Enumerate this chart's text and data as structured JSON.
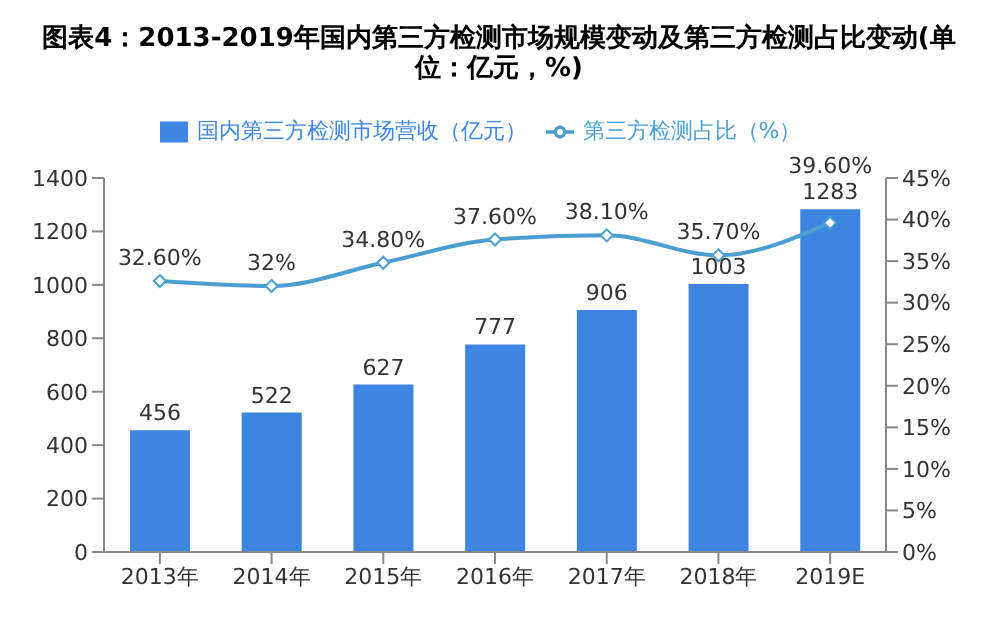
{
  "chart_data": {
    "type": "bar",
    "title": "图表4：2013-2019年国内第三方检测市场规模变动及第三方检测占比变动(单位：亿元，%)",
    "categories": [
      "2013年",
      "2014年",
      "2015年",
      "2016年",
      "2017年",
      "2018年",
      "2019E"
    ],
    "series": [
      {
        "name": "国内第三方检测市场营收（亿元）",
        "color": "#3d85de",
        "values": [
          456,
          522,
          627,
          777,
          906,
          1003,
          1283
        ],
        "value_labels": [
          "456",
          "522",
          "627",
          "777",
          "906",
          "1003",
          "1283"
        ]
      },
      {
        "name": "第三方检测占比（%）",
        "type": "line",
        "axis": "y2",
        "color": "#4a9fd0",
        "marker": "diamond",
        "values": [
          32.6,
          32,
          34.8,
          37.6,
          38.1,
          35.7,
          39.6
        ],
        "value_labels": [
          "32.60%",
          "32%",
          "34.80%",
          "37.60%",
          "38.10%",
          "35.70%",
          "39.60%"
        ]
      }
    ],
    "ylim": [
      0,
      1400
    ],
    "yticks": [
      0,
      200,
      400,
      600,
      800,
      1000,
      1200,
      1400
    ],
    "y2lim": [
      0,
      45
    ],
    "y2ticks": [
      {
        "value": 0,
        "label": "0%"
      },
      {
        "value": 5,
        "label": "5%"
      },
      {
        "value": 10,
        "label": "10%"
      },
      {
        "value": 15,
        "label": "15%"
      },
      {
        "value": 20,
        "label": "20%"
      },
      {
        "value": 25,
        "label": "25%"
      },
      {
        "value": 30,
        "label": "30%"
      },
      {
        "value": 35,
        "label": "35%"
      },
      {
        "value": 40,
        "label": "40%"
      },
      {
        "value": 45,
        "label": "45%"
      }
    ],
    "legend": "top",
    "grid": false
  }
}
